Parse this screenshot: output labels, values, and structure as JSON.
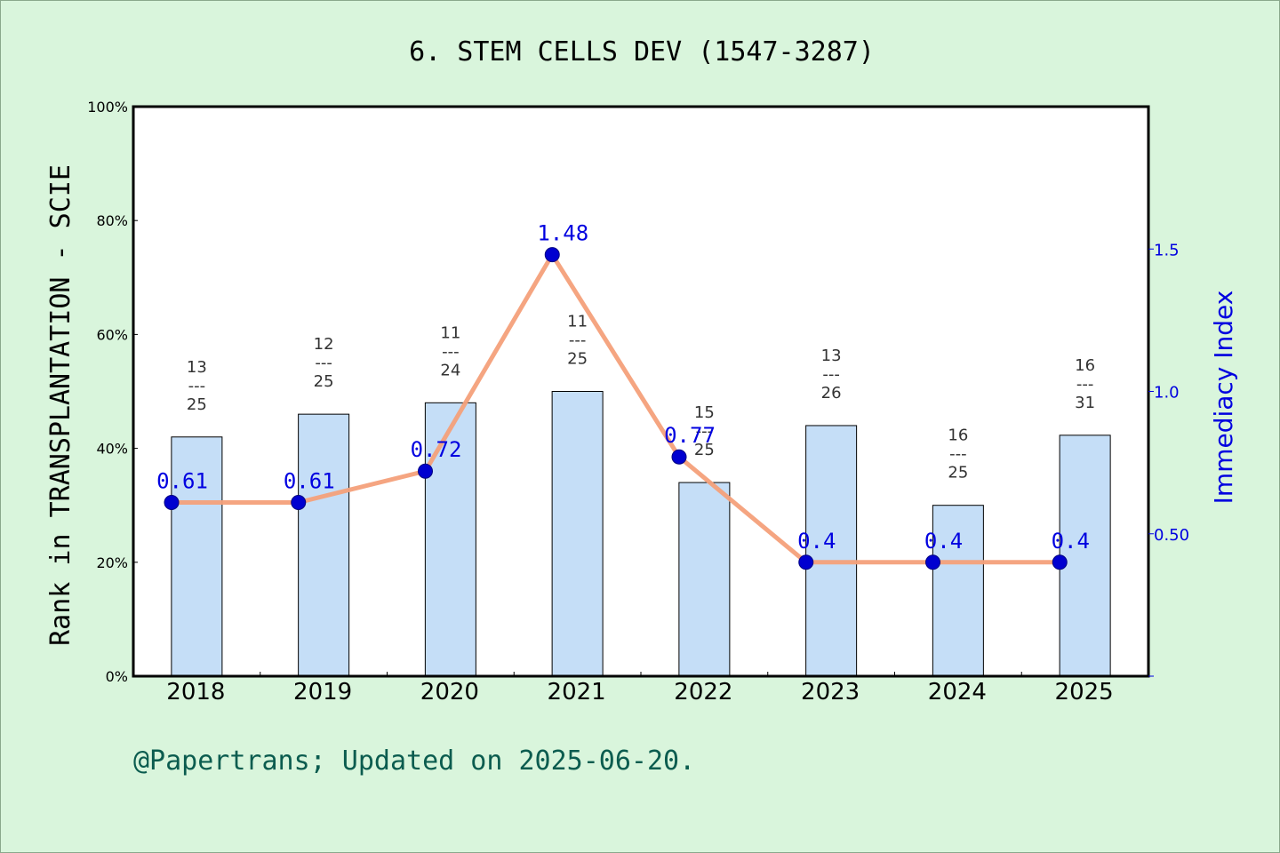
{
  "title": "6. STEM CELLS DEV (1547-3287)",
  "footer": "@Papertrans; Updated on 2025-06-20.",
  "chart_data": {
    "type": "bar+line",
    "categories": [
      "2018",
      "2019",
      "2020",
      "2021",
      "2022",
      "2023",
      "2024",
      "2025"
    ],
    "left_axis": {
      "label": "Rank in TRANSPLANTATION - SCIE",
      "ylim": [
        0,
        100
      ],
      "ticks": [
        "0%",
        "20%",
        "40%",
        "60%",
        "80%",
        "100%"
      ]
    },
    "right_axis": {
      "label": "Immediacy Index",
      "ylim": [
        0,
        2.0
      ],
      "ticks": [
        {
          "value": 0.5,
          "label": "0.50"
        },
        {
          "value": 1.0,
          "label": "1.0"
        },
        {
          "value": 1.5,
          "label": "1.5"
        }
      ]
    },
    "bars": {
      "ranks": [
        {
          "rank": "13",
          "total": "25",
          "sep": "---"
        },
        {
          "rank": "12",
          "total": "25",
          "sep": "---"
        },
        {
          "rank": "11",
          "total": "24",
          "sep": "---"
        },
        {
          "rank": "11",
          "total": "25",
          "sep": "---"
        },
        {
          "rank": "15",
          "total": "25",
          "sep": "---"
        },
        {
          "rank": "13",
          "total": "26",
          "sep": "---"
        },
        {
          "rank": "16",
          "total": "25",
          "sep": "---"
        },
        {
          "rank": "16",
          "total": "31",
          "sep": "---"
        }
      ],
      "percent": [
        42.0,
        46.0,
        48.0,
        50.0,
        34.0,
        44.0,
        30.0,
        42.3
      ]
    },
    "series": [
      {
        "values": [
          0.61,
          0.61,
          0.72,
          1.48,
          0.77,
          0.4,
          0.4,
          0.4
        ],
        "labels": [
          "0.61",
          "0.61",
          "0.72",
          "1.48",
          "0.77",
          "0.4",
          "0.4",
          "0.4"
        ]
      }
    ],
    "colors": {
      "bar_fill": "#c5def7",
      "bar_stroke": "#000000",
      "line": "#f4a07a",
      "marker": "#0000d0",
      "value_label": "#0000e0",
      "right_axis": "#0000e0",
      "background": "#d9f5dc",
      "plot_bg": "#ffffff",
      "footer": "#0b5c4f"
    },
    "grid": false
  }
}
